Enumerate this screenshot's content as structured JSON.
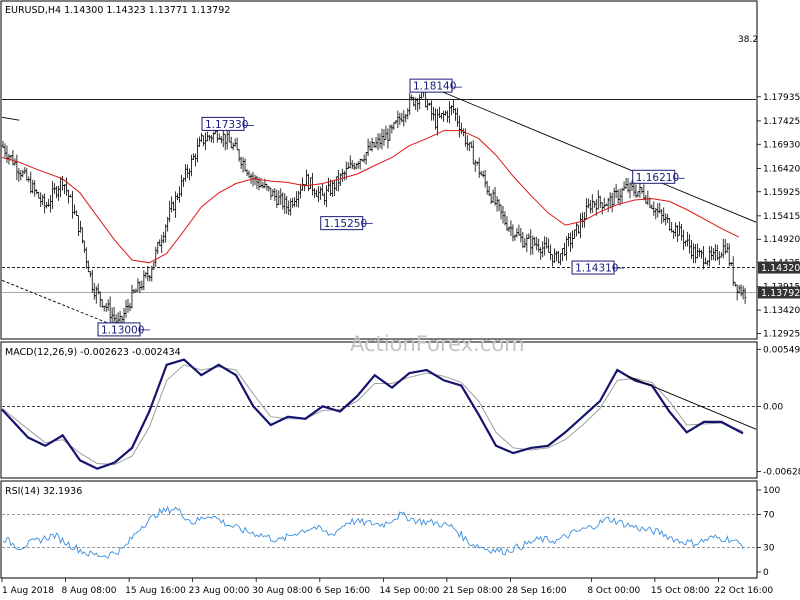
{
  "chart_data": [
    {
      "type": "candlestick",
      "title": "EURUSD,H4  1.14300 1.14323 1.13771 1.13792",
      "watermark": "ActionForex.com",
      "ylim": [
        1.1285,
        1.199
      ],
      "y_ticks": [
        "1.17935",
        "1.17425",
        "1.16930",
        "1.16420",
        "1.15925",
        "1.15415",
        "1.14920",
        "1.14425",
        "1.13915",
        "1.13420",
        "1.12925"
      ],
      "y_tick_values": [
        1.17935,
        1.17425,
        1.1693,
        1.1642,
        1.15925,
        1.15415,
        1.1492,
        1.14425,
        1.13915,
        1.1342,
        1.12925
      ],
      "x_ticks": [
        "1 Aug 2018",
        "8 Aug 08:00",
        "15 Aug 16:00",
        "23 Aug 00:00",
        "30 Aug 08:00",
        "6 Sep 16:00",
        "14 Sep 00:00",
        "21 Sep 08:00",
        "28 Sep 16:00",
        "8 Oct 00:00",
        "15 Oct 08:00",
        "22 Oct 16:00"
      ],
      "x_range_days": [
        0,
        87
      ],
      "x_tick_days": [
        0,
        7.33,
        14.67,
        22,
        29.33,
        36.67,
        44,
        51.33,
        58.67,
        68,
        75.33,
        82.67
      ],
      "close_path": [
        [
          0,
          1.169
        ],
        [
          2,
          1.164
        ],
        [
          5,
          1.156
        ],
        [
          7,
          1.162
        ],
        [
          9,
          1.151
        ],
        [
          10.5,
          1.139
        ],
        [
          12,
          1.135
        ],
        [
          13.5,
          1.131
        ],
        [
          15,
          1.137
        ],
        [
          17,
          1.142
        ],
        [
          19,
          1.153
        ],
        [
          21,
          1.162
        ],
        [
          23,
          1.17
        ],
        [
          25,
          1.172
        ],
        [
          27,
          1.168
        ],
        [
          29,
          1.162
        ],
        [
          31,
          1.159
        ],
        [
          33,
          1.156
        ],
        [
          35,
          1.162
        ],
        [
          37,
          1.158
        ],
        [
          39,
          1.162
        ],
        [
          41,
          1.166
        ],
        [
          43,
          1.169
        ],
        [
          45,
          1.172
        ],
        [
          47,
          1.178
        ],
        [
          48.5,
          1.18
        ],
        [
          50,
          1.174
        ],
        [
          52,
          1.177
        ],
        [
          54,
          1.168
        ],
        [
          56,
          1.16
        ],
        [
          58,
          1.153
        ],
        [
          60,
          1.149
        ],
        [
          62,
          1.148
        ],
        [
          64,
          1.145
        ],
        [
          66,
          1.15
        ],
        [
          68,
          1.157
        ],
        [
          70,
          1.157
        ],
        [
          72,
          1.16
        ],
        [
          74,
          1.159
        ],
        [
          76,
          1.154
        ],
        [
          78,
          1.151
        ],
        [
          80,
          1.146
        ],
        [
          82,
          1.145
        ],
        [
          83.5,
          1.148
        ],
        [
          84.5,
          1.14
        ],
        [
          85.5,
          1.1379
        ]
      ],
      "sma_path": [
        [
          0,
          1.1665
        ],
        [
          2,
          1.1655
        ],
        [
          4,
          1.164
        ],
        [
          7,
          1.162
        ],
        [
          9,
          1.159
        ],
        [
          11,
          1.154
        ],
        [
          13,
          1.149
        ],
        [
          15,
          1.1448
        ],
        [
          17,
          1.1442
        ],
        [
          19,
          1.1462
        ],
        [
          21,
          1.151
        ],
        [
          23,
          1.156
        ],
        [
          25,
          1.159
        ],
        [
          27,
          1.161
        ],
        [
          29,
          1.162
        ],
        [
          31,
          1.1615
        ],
        [
          33,
          1.1612
        ],
        [
          35,
          1.1605
        ],
        [
          37,
          1.161
        ],
        [
          39,
          1.162
        ],
        [
          41,
          1.163
        ],
        [
          43,
          1.1648
        ],
        [
          45,
          1.1665
        ],
        [
          47,
          1.169
        ],
        [
          49,
          1.1705
        ],
        [
          51,
          1.1722
        ],
        [
          53,
          1.1722
        ],
        [
          55,
          1.1705
        ],
        [
          57,
          1.167
        ],
        [
          59,
          1.1625
        ],
        [
          61,
          1.1585
        ],
        [
          63,
          1.1548
        ],
        [
          65,
          1.1522
        ],
        [
          67,
          1.153
        ],
        [
          69,
          1.155
        ],
        [
          71,
          1.1565
        ],
        [
          73,
          1.1575
        ],
        [
          75,
          1.1578
        ],
        [
          77,
          1.1572
        ],
        [
          79,
          1.1555
        ],
        [
          81,
          1.1535
        ],
        [
          83,
          1.1515
        ],
        [
          85,
          1.1497
        ]
      ],
      "series": [
        {
          "name": "EURUSD",
          "values": "close_path"
        }
      ],
      "annotations": [
        {
          "text": "1.18140",
          "day": 49.5,
          "price": 1.1814
        },
        {
          "text": "1.17330",
          "day": 25.5,
          "price": 1.1733
        },
        {
          "text": "1.16210",
          "day": 75.2,
          "price": 1.1621
        },
        {
          "text": "1.15250",
          "day": 39.2,
          "price": 1.1525
        },
        {
          "text": "1.14310",
          "day": 68.2,
          "price": 1.1431
        },
        {
          "text": "1.13000",
          "day": 13.5,
          "price": 1.13
        }
      ],
      "fib_label": "38.2",
      "fib_level": 1.1788,
      "support_level": 1.1432,
      "current_price": "1.14320",
      "current_close": "1.13792",
      "close_level": 1.13792,
      "trendline_down": [
        [
          49.5,
          1.1814
        ],
        [
          87,
          1.1528
        ]
      ],
      "trendline_up": [
        [
          0,
          1.1405
        ],
        [
          13.5,
          1.1305
        ]
      ],
      "trendline_left_stub": [
        [
          0,
          1.175
        ],
        [
          2,
          1.1744
        ]
      ]
    },
    {
      "type": "line",
      "title": "MACD(12,26,9) -0.002623 -0.002434",
      "ylim": [
        -0.0068,
        0.006
      ],
      "y_ticks": [
        "0.005493",
        "0.00",
        "-0.006282"
      ],
      "y_tick_values": [
        0.005493,
        0.0,
        -0.006282
      ],
      "zero_line": 0.0,
      "series": [
        {
          "values": [
            [
              0,
              -0.0003
            ],
            [
              3,
              -0.003
            ],
            [
              5,
              -0.0038
            ],
            [
              7,
              -0.0028
            ],
            [
              9,
              -0.0052
            ],
            [
              11,
              -0.006
            ],
            [
              13,
              -0.0054
            ],
            [
              15,
              -0.004
            ],
            [
              17,
              -0.0005
            ],
            [
              19,
              0.004
            ],
            [
              21,
              0.0045
            ],
            [
              23,
              0.003
            ],
            [
              25,
              0.004
            ],
            [
              27,
              0.003
            ],
            [
              29,
              0.0
            ],
            [
              31,
              -0.0018
            ],
            [
              33,
              -0.001
            ],
            [
              35,
              -0.0012
            ],
            [
              37,
              0.0
            ],
            [
              39,
              -0.0005
            ],
            [
              41,
              0.001
            ],
            [
              43,
              0.003
            ],
            [
              45,
              0.0018
            ],
            [
              47,
              0.0032
            ],
            [
              49,
              0.0035
            ],
            [
              51,
              0.0025
            ],
            [
              53,
              0.002
            ],
            [
              55,
              -0.0008
            ],
            [
              57,
              -0.0038
            ],
            [
              59,
              -0.0045
            ],
            [
              61,
              -0.004
            ],
            [
              63,
              -0.0038
            ],
            [
              65,
              -0.0025
            ],
            [
              67,
              -0.001
            ],
            [
              69,
              0.0005
            ],
            [
              71,
              0.0035
            ],
            [
              73,
              0.0025
            ],
            [
              75,
              0.002
            ],
            [
              77,
              -0.0005
            ],
            [
              79,
              -0.0025
            ],
            [
              81,
              -0.0015
            ],
            [
              83,
              -0.0015
            ],
            [
              85.5,
              -0.0026
            ]
          ]
        },
        {
          "values": [
            [
              0,
              -0.0002
            ],
            [
              3,
              -0.0022
            ],
            [
              5,
              -0.0035
            ],
            [
              7,
              -0.0032
            ],
            [
              9,
              -0.0045
            ],
            [
              11,
              -0.0055
            ],
            [
              13,
              -0.0056
            ],
            [
              15,
              -0.0048
            ],
            [
              17,
              -0.002
            ],
            [
              19,
              0.0025
            ],
            [
              21,
              0.004
            ],
            [
              23,
              0.0035
            ],
            [
              25,
              0.0038
            ],
            [
              27,
              0.0035
            ],
            [
              29,
              0.0012
            ],
            [
              31,
              -0.001
            ],
            [
              33,
              -0.0012
            ],
            [
              35,
              -0.0012
            ],
            [
              37,
              -0.0004
            ],
            [
              39,
              -0.0003
            ],
            [
              41,
              0.0005
            ],
            [
              43,
              0.0022
            ],
            [
              45,
              0.0022
            ],
            [
              47,
              0.0028
            ],
            [
              49,
              0.0032
            ],
            [
              51,
              0.0029
            ],
            [
              53,
              0.0023
            ],
            [
              55,
              0.0005
            ],
            [
              57,
              -0.0025
            ],
            [
              59,
              -0.004
            ],
            [
              61,
              -0.0042
            ],
            [
              63,
              -0.004
            ],
            [
              65,
              -0.0032
            ],
            [
              67,
              -0.0018
            ],
            [
              69,
              -0.0002
            ],
            [
              71,
              0.0025
            ],
            [
              73,
              0.0027
            ],
            [
              75,
              0.0023
            ],
            [
              77,
              0.0005
            ],
            [
              79,
              -0.0018
            ],
            [
              81,
              -0.0017
            ],
            [
              83,
              -0.0016
            ],
            [
              85.5,
              -0.0024
            ]
          ]
        }
      ],
      "trendline": [
        [
          72,
          0.003
        ],
        [
          87,
          -0.0022
        ]
      ]
    },
    {
      "type": "line",
      "title": "RSI(14) 32.1936",
      "ylim": [
        0,
        100
      ],
      "y_ticks": [
        "100",
        "70",
        "30",
        "0"
      ],
      "y_tick_values": [
        100,
        70,
        30,
        0
      ],
      "levels": [
        70,
        30
      ],
      "series": [
        {
          "values": [
            [
              0,
              42
            ],
            [
              2,
              30
            ],
            [
              4,
              38
            ],
            [
              6,
              45
            ],
            [
              8,
              32
            ],
            [
              10,
              22
            ],
            [
              12,
              20
            ],
            [
              14,
              28
            ],
            [
              16,
              55
            ],
            [
              18,
              72
            ],
            [
              20,
              78
            ],
            [
              22,
              60
            ],
            [
              24,
              70
            ],
            [
              26,
              58
            ],
            [
              28,
              50
            ],
            [
              30,
              45
            ],
            [
              32,
              38
            ],
            [
              34,
              48
            ],
            [
              36,
              55
            ],
            [
              38,
              45
            ],
            [
              40,
              62
            ],
            [
              42,
              60
            ],
            [
              44,
              58
            ],
            [
              46,
              70
            ],
            [
              48,
              62
            ],
            [
              50,
              60
            ],
            [
              52,
              55
            ],
            [
              54,
              35
            ],
            [
              56,
              28
            ],
            [
              58,
              25
            ],
            [
              60,
              32
            ],
            [
              62,
              40
            ],
            [
              64,
              38
            ],
            [
              66,
              48
            ],
            [
              68,
              55
            ],
            [
              70,
              65
            ],
            [
              72,
              58
            ],
            [
              74,
              52
            ],
            [
              76,
              48
            ],
            [
              78,
              38
            ],
            [
              80,
              35
            ],
            [
              82,
              42
            ],
            [
              84,
              40
            ],
            [
              85.5,
              32.2
            ]
          ]
        }
      ]
    }
  ]
}
